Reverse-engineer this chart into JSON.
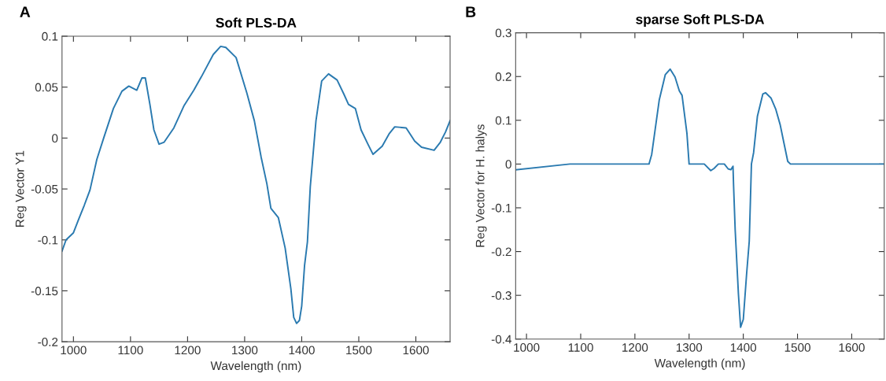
{
  "chart_data": [
    {
      "type": "line",
      "title": "Soft PLS-DA",
      "xlabel": "Wavelength (nm)",
      "ylabel": "Reg Vector Y1",
      "annotations": [
        "A"
      ],
      "xlim": [
        980,
        1660
      ],
      "ylim": [
        -0.2,
        0.1
      ],
      "xticks": [
        1000,
        1100,
        1200,
        1300,
        1400,
        1500,
        1600
      ],
      "yticks": [
        -0.2,
        -0.15,
        -0.1,
        -0.05,
        0,
        0.05,
        0.1
      ],
      "grid": false,
      "legend": false,
      "series": [
        {
          "color": "#2a7ab0",
          "x": [
            980,
            987,
            1000,
            1009,
            1019,
            1029,
            1041,
            1053,
            1070,
            1085,
            1097,
            1111,
            1120,
            1126,
            1134,
            1141,
            1150,
            1159,
            1176,
            1194,
            1211,
            1226,
            1245,
            1258,
            1267,
            1285,
            1304,
            1317,
            1329,
            1339,
            1346,
            1359,
            1371,
            1381,
            1386,
            1391,
            1396,
            1400,
            1405,
            1410,
            1415,
            1425,
            1435,
            1447,
            1462,
            1474,
            1482,
            1494,
            1504,
            1516,
            1525,
            1541,
            1553,
            1563,
            1583,
            1598,
            1610,
            1632,
            1643,
            1652,
            1660
          ],
          "values": [
            -0.111,
            -0.1,
            -0.093,
            -0.08,
            -0.066,
            -0.051,
            -0.021,
            0,
            0.029,
            0.046,
            0.051,
            0.047,
            0.059,
            0.059,
            0.033,
            0.008,
            -0.006,
            -0.004,
            0.01,
            0.032,
            0.047,
            0.062,
            0.082,
            0.09,
            0.089,
            0.079,
            0.044,
            0.017,
            -0.019,
            -0.045,
            -0.069,
            -0.078,
            -0.108,
            -0.148,
            -0.176,
            -0.182,
            -0.179,
            -0.165,
            -0.125,
            -0.102,
            -0.048,
            0.017,
            0.056,
            0.063,
            0.057,
            0.043,
            0.033,
            0.029,
            0.008,
            -0.006,
            -0.016,
            -0.008,
            0.004,
            0.011,
            0.01,
            -0.003,
            -0.009,
            -0.012,
            -0.004,
            0.006,
            0.017
          ]
        }
      ]
    },
    {
      "type": "line",
      "title": "sparse Soft PLS-DA",
      "xlabel": "Wavelength (nm)",
      "ylabel": "Reg Vector for H. halys",
      "annotations": [
        "B"
      ],
      "xlim": [
        980,
        1660
      ],
      "ylim": [
        -0.4,
        0.3
      ],
      "xticks": [
        1000,
        1100,
        1200,
        1300,
        1400,
        1500,
        1600
      ],
      "yticks": [
        -0.4,
        -0.3,
        -0.2,
        -0.1,
        0,
        0.1,
        0.2,
        0.3
      ],
      "grid": false,
      "legend": false,
      "series": [
        {
          "color": "#2a7ab0",
          "x": [
            980,
            1080,
            1226,
            1231,
            1245,
            1256,
            1265,
            1274,
            1282,
            1287,
            1296,
            1300,
            1328,
            1340,
            1346,
            1354,
            1365,
            1372,
            1377,
            1381,
            1382,
            1385,
            1391,
            1395,
            1400,
            1406,
            1411,
            1415,
            1419,
            1426,
            1436,
            1441,
            1451,
            1460,
            1468,
            1475,
            1482,
            1487,
            1660
          ],
          "values": [
            -0.013,
            0,
            0,
            0.022,
            0.147,
            0.204,
            0.217,
            0.199,
            0.167,
            0.157,
            0.07,
            0,
            0,
            -0.015,
            -0.01,
            0,
            0,
            -0.011,
            -0.013,
            -0.005,
            -0.047,
            -0.15,
            -0.297,
            -0.373,
            -0.355,
            -0.253,
            -0.176,
            0,
            0.026,
            0.109,
            0.16,
            0.163,
            0.151,
            0.125,
            0.09,
            0.048,
            0.006,
            0,
            0
          ]
        }
      ]
    }
  ]
}
